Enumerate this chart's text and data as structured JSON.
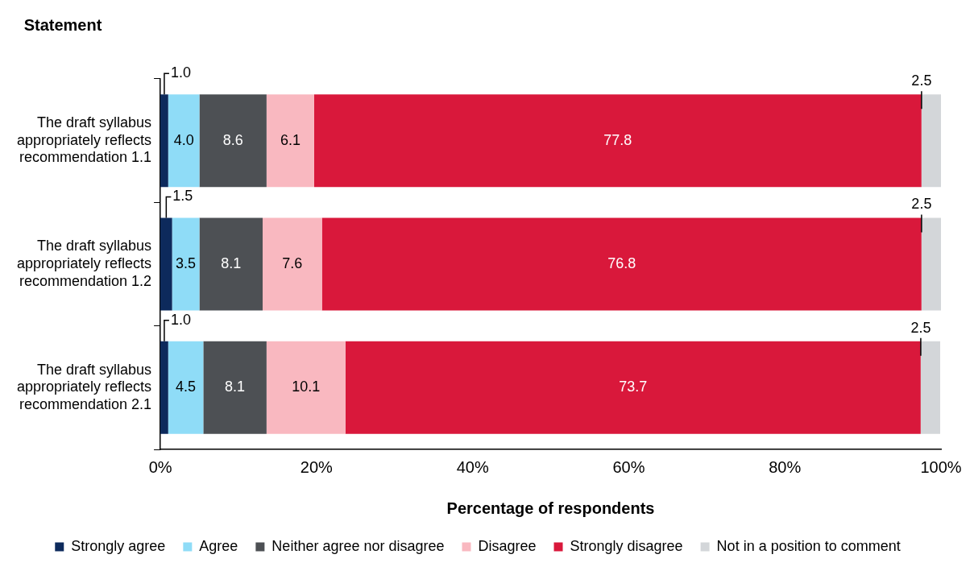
{
  "chart_data": {
    "type": "bar",
    "orientation": "horizontal",
    "stacked": true,
    "ylabel": "Statement",
    "xlabel": "Percentage of respondents",
    "categories": [
      "The draft syllabus appropriately reflects recommendation 1.1",
      "The draft syllabus appropriately reflects recommendation 1.2",
      "The draft syllabus appropriately reflects recommendation 2.1"
    ],
    "series": [
      {
        "name": "Strongly agree",
        "color": "#0d2a5c",
        "values": [
          1.0,
          1.5,
          1.0
        ],
        "value_labels": [
          "1.0",
          "1.5",
          "1.0"
        ]
      },
      {
        "name": "Agree",
        "color": "#8fdcf7",
        "values": [
          4.0,
          3.5,
          4.5
        ],
        "value_labels": [
          "4.0",
          "3.5",
          "4.5"
        ]
      },
      {
        "name": "Neither agree nor disagree",
        "color": "#4d5054",
        "values": [
          8.6,
          8.1,
          8.1
        ],
        "value_labels": [
          "8.6",
          "8.1",
          "8.1"
        ]
      },
      {
        "name": "Disagree",
        "color": "#f9b8c0",
        "values": [
          6.1,
          7.6,
          10.1
        ],
        "value_labels": [
          "6.1",
          "7.6",
          "10.1"
        ]
      },
      {
        "name": "Strongly disagree",
        "color": "#d9183b",
        "values": [
          77.8,
          76.8,
          73.7
        ],
        "value_labels": [
          "77.8",
          "76.8",
          "73.7"
        ]
      },
      {
        "name": "Not in a position to comment",
        "color": "#d3d6d9",
        "values": [
          2.5,
          2.5,
          2.5
        ],
        "value_labels": [
          "2.5",
          "2.5",
          "2.5"
        ]
      }
    ],
    "xlim": [
      0,
      100
    ],
    "xticks": [
      {
        "value": 0,
        "label": "0%"
      },
      {
        "value": 20,
        "label": "20%"
      },
      {
        "value": 40,
        "label": "40%"
      },
      {
        "value": 60,
        "label": "60%"
      },
      {
        "value": 80,
        "label": "80%"
      },
      {
        "value": 100,
        "label": "100%"
      }
    ],
    "grid": false,
    "legend": "bottom"
  }
}
